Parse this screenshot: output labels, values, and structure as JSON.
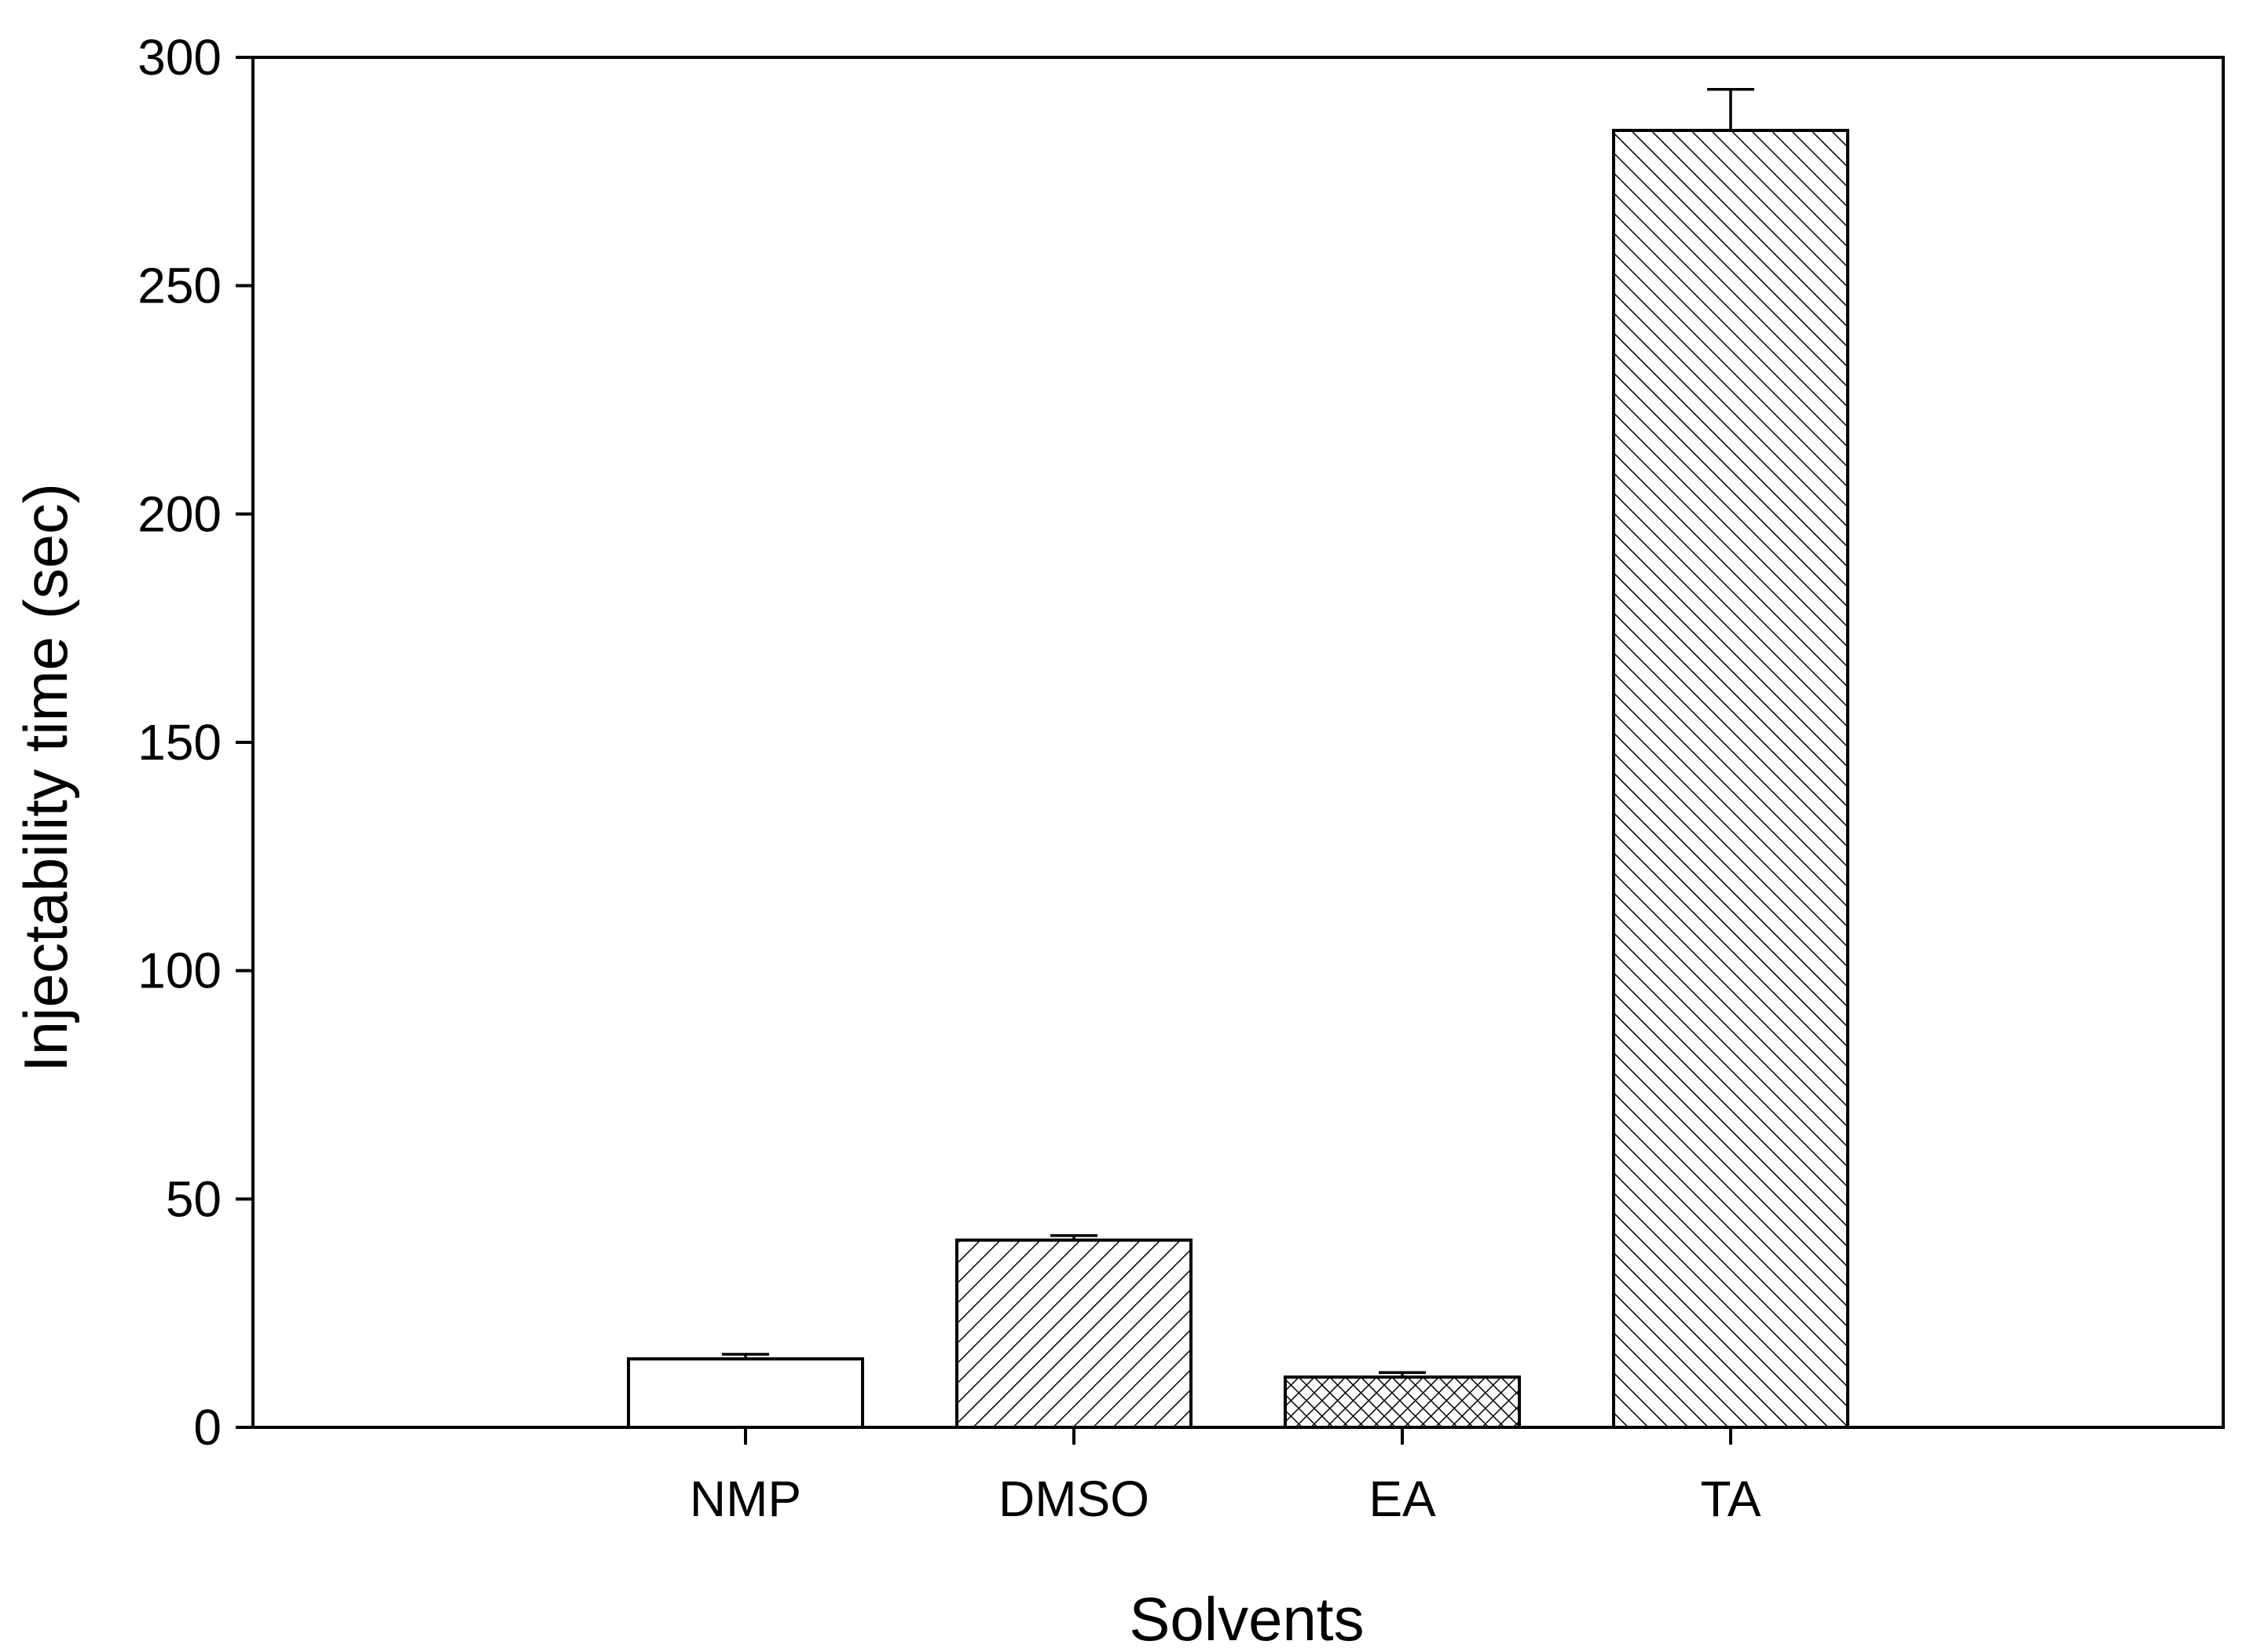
{
  "chart_data": {
    "type": "bar",
    "title": "",
    "xlabel": "Solvents",
    "ylabel": "Injectability time (sec)",
    "ylim": [
      0,
      300
    ],
    "yticks": [
      0,
      50,
      100,
      150,
      200,
      250,
      300
    ],
    "categories": [
      "NMP",
      "DMSO",
      "EA",
      "TA"
    ],
    "values": [
      15,
      41,
      11,
      284
    ],
    "errors": [
      1,
      1,
      1,
      9
    ],
    "fills": [
      "none",
      "diagonal-hatch",
      "crosshatch",
      "back-diagonal-hatch"
    ],
    "grid": false,
    "legend": "none",
    "colors": {
      "line": "#000000",
      "background": "#ffffff"
    }
  }
}
